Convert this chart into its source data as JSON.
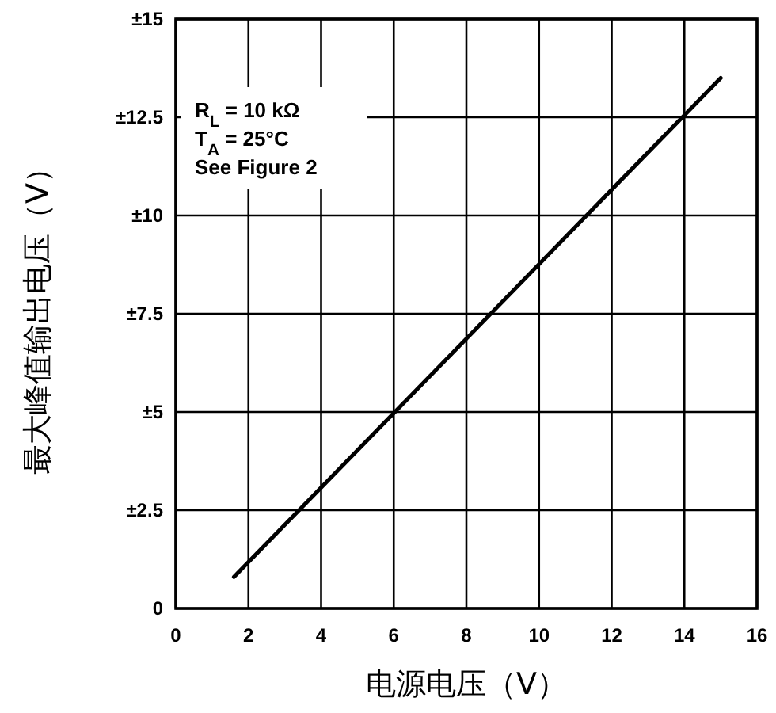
{
  "chart_data": {
    "type": "line",
    "xlabel": "电源电压（V）",
    "ylabel": "最大峰值输出电压（V）",
    "x": [
      1.6,
      15
    ],
    "xlim": [
      0,
      16
    ],
    "xticks": [
      0,
      2,
      4,
      6,
      8,
      10,
      12,
      14,
      16
    ],
    "ylim": [
      0,
      15
    ],
    "yticks": [
      0,
      {
        "value": 2.5,
        "label": "±2.5"
      },
      {
        "value": 5,
        "label": "±5"
      },
      {
        "value": 7.5,
        "label": "±7.5"
      },
      {
        "value": 10,
        "label": "±10"
      },
      {
        "value": 12.5,
        "label": "±12.5"
      },
      {
        "value": 15,
        "label": "±15"
      }
    ],
    "series": [
      {
        "color": "#000000",
        "values": [
          0.8,
          13.5
        ]
      }
    ],
    "grid": true,
    "line_style": "solid",
    "annotations": [
      "R$_{L}$ = 10 kΩ",
      "T$_{A}$ = 25°C",
      "See Figure 2"
    ]
  }
}
